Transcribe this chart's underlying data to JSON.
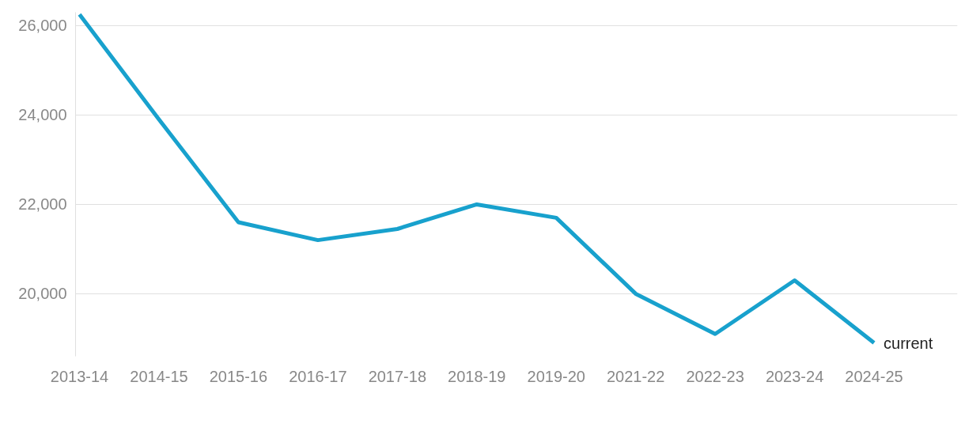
{
  "chart_data": {
    "type": "line",
    "categories": [
      "2013-14",
      "2014-15",
      "2015-16",
      "2016-17",
      "2017-18",
      "2018-19",
      "2019-20",
      "2021-22",
      "2022-23",
      "2023-24",
      "2024-25"
    ],
    "series": [
      {
        "color": "#18a1cd",
        "values": [
          26250,
          23900,
          21600,
          21200,
          21450,
          22000,
          21700,
          20000,
          19100,
          20300,
          18900
        ]
      }
    ],
    "ylim": [
      18600,
      26300
    ],
    "yticks": [
      {
        "value": 20000,
        "label": "20,000"
      },
      {
        "value": 22000,
        "label": "22,000"
      },
      {
        "value": 24000,
        "label": "24,000"
      },
      {
        "value": 26000,
        "label": "26,000"
      }
    ],
    "grid": "y",
    "annotations": [
      {
        "text": "current",
        "x": "2024-25",
        "y": 18900
      }
    ]
  }
}
